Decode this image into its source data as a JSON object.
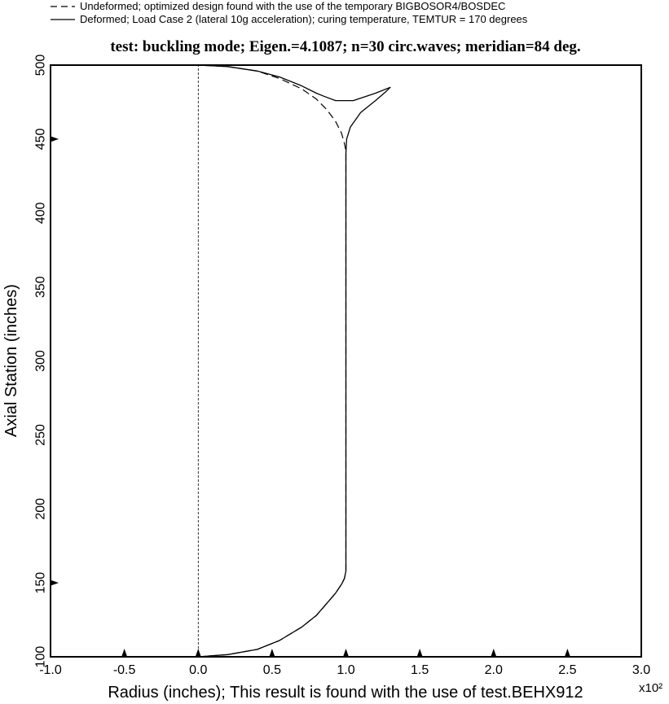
{
  "chart_data": {
    "type": "line",
    "title": "test: buckling mode; Eigen.=4.1087; n=30 circ.waves; meridian=84 deg.",
    "xlabel": "Radius (inches); This result is found with the use of test.BEHX912",
    "ylabel": "Axial Station (inches)",
    "x_multiplier_label": "x10²",
    "xlim": [
      -1.0,
      3.0
    ],
    "ylim": [
      100,
      500
    ],
    "x_ticks": [
      -1.0,
      -0.5,
      0.0,
      0.5,
      1.0,
      1.5,
      2.0,
      2.5,
      3.0
    ],
    "x_tick_labels": [
      "-1.0",
      "-0.5",
      "0.0",
      "0.5",
      "1.0",
      "1.5",
      "2.0",
      "2.5",
      "3.0"
    ],
    "y_ticks": [
      100,
      150,
      200,
      250,
      300,
      350,
      400,
      450,
      500
    ],
    "y_tick_labels": [
      "100",
      "150",
      "200",
      "250",
      "300",
      "350",
      "400",
      "450",
      "500"
    ],
    "axis_markers_x": [
      -0.5,
      0.0,
      0.5,
      1.0,
      1.5,
      2.0,
      2.5
    ],
    "axis_markers_y": [
      150,
      450
    ],
    "grid": false,
    "legend_position": "top-left",
    "series": [
      {
        "name": "Undeformed; optimized design found with the use of the temporary BIGBOSOR4/BOSDEC",
        "style": "dashed",
        "x": [
          0.0,
          0.2,
          0.4,
          0.55,
          0.7,
          0.8,
          0.87,
          0.93,
          0.97,
          0.99,
          1.0,
          1.0,
          0.99,
          0.97,
          0.93,
          0.87,
          0.8,
          0.7,
          0.55,
          0.4,
          0.2,
          0.0
        ],
        "y": [
          100,
          101.5,
          105,
          111,
          120,
          128,
          136,
          143,
          149,
          153,
          158,
          442,
          447,
          454,
          462,
          470,
          477,
          484,
          491,
          496,
          499,
          500
        ]
      },
      {
        "name": "Deformed; Load Case 2 (lateral 10g acceleration); curing temperature, TEMTUR = 170 degrees",
        "style": "solid",
        "x": [
          0.0,
          0.2,
          0.4,
          0.55,
          0.7,
          0.8,
          0.87,
          0.93,
          0.97,
          0.99,
          1.0,
          1.0,
          1.0,
          1.005,
          1.03,
          1.1,
          1.2,
          1.27,
          1.3,
          1.2,
          1.05,
          0.93,
          0.85,
          0.8,
          0.7,
          0.55,
          0.4,
          0.2,
          0.0
        ],
        "y": [
          100,
          101.5,
          105,
          111,
          120,
          128,
          136,
          143,
          149,
          153,
          158,
          430,
          440,
          450,
          458,
          468,
          476,
          482,
          485,
          481,
          476,
          476,
          479,
          481,
          486,
          492,
          496,
          499,
          500
        ]
      },
      {
        "name": "",
        "style": "dotted-axis",
        "x": [
          0.0,
          0.0
        ],
        "y": [
          100,
          500
        ]
      }
    ]
  }
}
